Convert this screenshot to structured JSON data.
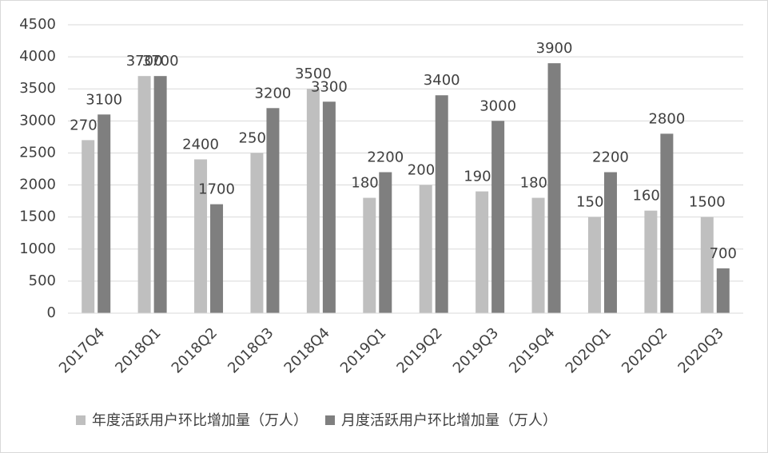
{
  "chart_data": {
    "type": "bar",
    "categories": [
      "2017Q4",
      "2018Q1",
      "2018Q2",
      "2018Q3",
      "2018Q4",
      "2019Q1",
      "2019Q2",
      "2019Q3",
      "2019Q4",
      "2020Q1",
      "2020Q2",
      "2020Q3"
    ],
    "series": [
      {
        "name": "年度活跃用户环比增加量（万人）",
        "color": "#bfbfbf",
        "values": [
          2700,
          3700,
          2400,
          2500,
          3500,
          1800,
          2000,
          1900,
          1800,
          1500,
          1600,
          1500
        ]
      },
      {
        "name": "月度活跃用户环比增加量（万人）",
        "color": "#7f7f7f",
        "values": [
          3100,
          3700,
          1700,
          3200,
          3300,
          2200,
          3400,
          3000,
          3900,
          2200,
          2800,
          700
        ]
      }
    ],
    "ylim": [
      0,
      4500
    ],
    "yticks": [
      0,
      500,
      1000,
      1500,
      2000,
      2500,
      3000,
      3500,
      4000,
      4500
    ],
    "grid": true,
    "legend": "bottom"
  }
}
